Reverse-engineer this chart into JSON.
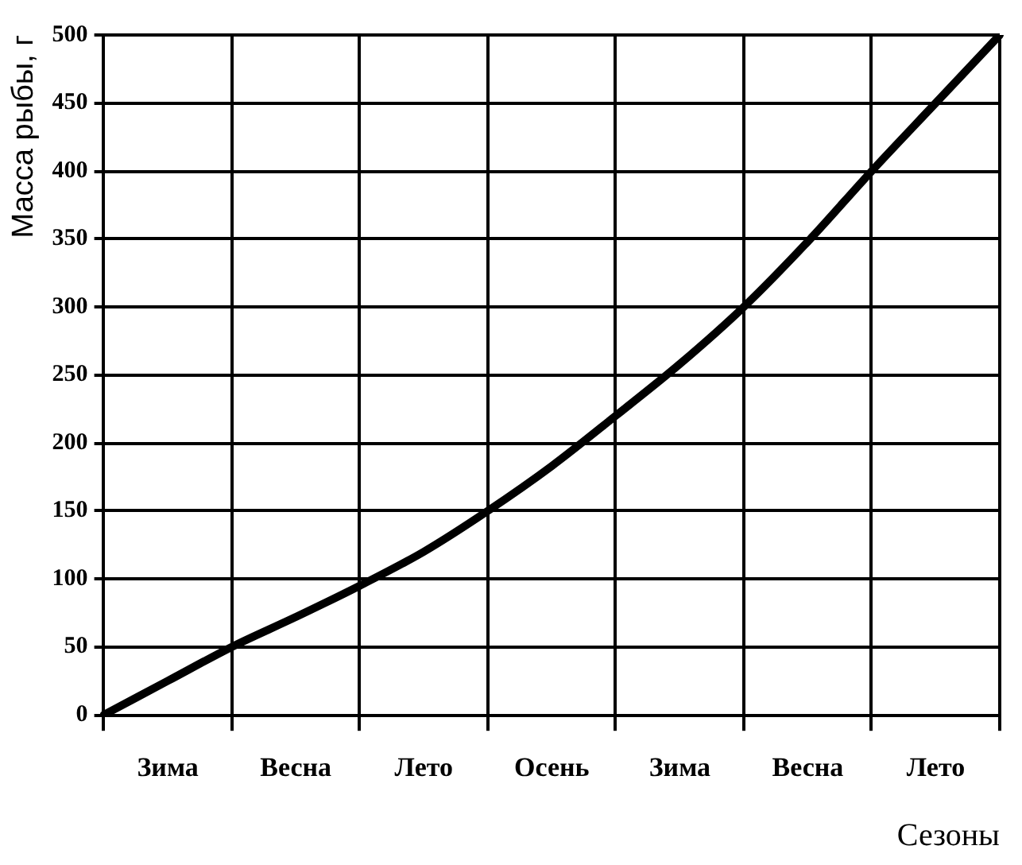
{
  "chart_data": {
    "type": "line",
    "xlabel": "Сезоны",
    "ylabel": "Масса рыбы, г",
    "categories": [
      null,
      "Зима",
      null,
      "Весна",
      null,
      "Лето",
      null,
      "Осень",
      null,
      "Зима",
      null,
      "Весна",
      null,
      "Лето",
      null
    ],
    "series": [
      {
        "color": "#000000",
        "values": [
          0,
          25,
          50,
          72,
          95,
          120,
          150,
          183,
          220,
          258,
          300,
          348,
          400,
          450,
          500
        ]
      }
    ],
    "ylim": [
      0,
      500
    ],
    "yticks": [
      0,
      50,
      100,
      150,
      200,
      250,
      300,
      350,
      400,
      450,
      500
    ],
    "grid": true,
    "legend": false,
    "marker": "none",
    "line_style": "solid"
  }
}
